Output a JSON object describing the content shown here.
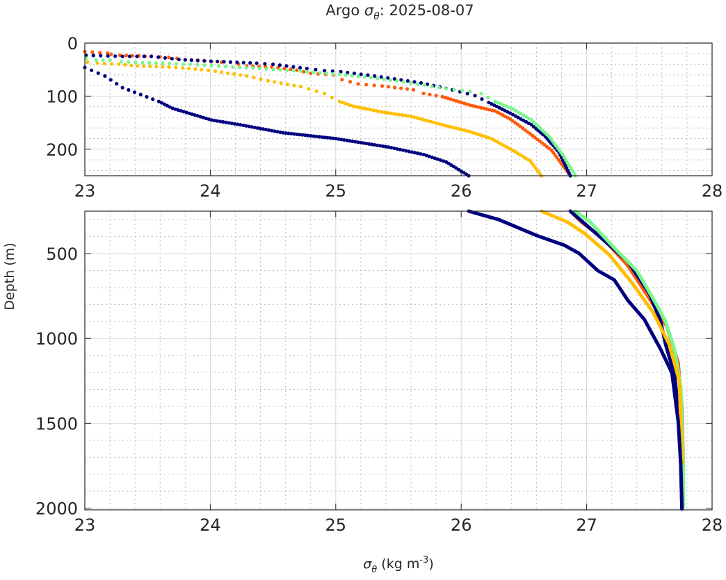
{
  "chart_data": {
    "type": "scatter",
    "title_prefix": "Argo ",
    "title_symbol": "σ",
    "title_sub": "θ",
    "title_suffix": ": 2025-08-07",
    "xlabel_symbol": "σ",
    "xlabel_sub": "θ",
    "xlabel_units": " (kg m",
    "xlabel_sup": "-3",
    "xlabel_close": ")",
    "ylabel": "Depth (m)",
    "xlim": [
      23,
      28
    ],
    "grid": true,
    "panels": [
      {
        "name": "upper",
        "ylim": [
          0,
          250
        ],
        "yticks": [
          "0",
          "100",
          "200"
        ],
        "ytick_values": [
          0,
          100,
          200
        ],
        "minor_y_step": 20,
        "style": "dots"
      },
      {
        "name": "lower",
        "ylim": [
          250,
          2010
        ],
        "yticks": [
          "500",
          "1000",
          "1500",
          "2000"
        ],
        "ytick_values": [
          500,
          1000,
          1500,
          2000
        ],
        "minor_y_step": 100,
        "style": "line"
      }
    ],
    "xticks": [
      "23",
      "24",
      "25",
      "26",
      "27",
      "28"
    ],
    "xtick_values": [
      23,
      24,
      25,
      26,
      27,
      28
    ],
    "minor_x_step": 0.2,
    "series": [
      {
        "name": "profile-orange",
        "color": "#ff5a0a",
        "points": [
          [
            23.0,
            16
          ],
          [
            23.18,
            19
          ],
          [
            23.21,
            21
          ],
          [
            23.28,
            23
          ],
          [
            23.53,
            25
          ],
          [
            23.67,
            27
          ],
          [
            23.8,
            31
          ],
          [
            23.9,
            32
          ],
          [
            24.01,
            35
          ],
          [
            24.09,
            36
          ],
          [
            24.16,
            36
          ],
          [
            24.29,
            43
          ],
          [
            24.49,
            45
          ],
          [
            24.69,
            51
          ],
          [
            24.8,
            57
          ],
          [
            24.98,
            60
          ],
          [
            25.05,
            69
          ],
          [
            25.18,
            77
          ],
          [
            25.37,
            81
          ],
          [
            25.62,
            88
          ],
          [
            25.7,
            95
          ],
          [
            25.85,
            101
          ],
          [
            26.07,
            117
          ],
          [
            26.27,
            128
          ],
          [
            26.39,
            143
          ],
          [
            26.55,
            171
          ],
          [
            26.72,
            202
          ],
          [
            26.87,
            250
          ],
          [
            26.96,
            315
          ],
          [
            27.13,
            410
          ],
          [
            27.33,
            572
          ],
          [
            27.5,
            765
          ],
          [
            27.64,
            929
          ],
          [
            27.73,
            1146
          ],
          [
            27.76,
            1417
          ],
          [
            27.77,
            1740
          ]
        ]
      },
      {
        "name": "profile-navy-2",
        "color": "#00007f",
        "points": [
          [
            23.01,
            23
          ],
          [
            23.3,
            25
          ],
          [
            23.53,
            25
          ],
          [
            23.64,
            28
          ],
          [
            23.75,
            31
          ],
          [
            23.9,
            33
          ],
          [
            24.37,
            38
          ],
          [
            24.5,
            40
          ],
          [
            24.77,
            48
          ],
          [
            24.91,
            52
          ],
          [
            25.04,
            54
          ],
          [
            25.31,
            62
          ],
          [
            25.68,
            75
          ],
          [
            25.93,
            88
          ],
          [
            26.11,
            99
          ],
          [
            26.22,
            112
          ],
          [
            26.39,
            132
          ],
          [
            26.56,
            154
          ],
          [
            26.67,
            176
          ],
          [
            26.78,
            206
          ],
          [
            26.87,
            250
          ],
          [
            27.12,
            410
          ],
          [
            27.33,
            548
          ],
          [
            27.5,
            735
          ],
          [
            27.59,
            900
          ],
          [
            27.63,
            1037
          ],
          [
            27.7,
            1213
          ],
          [
            27.73,
            1417
          ],
          [
            27.75,
            1735
          ],
          [
            27.76,
            2005
          ]
        ]
      },
      {
        "name": "profile-green",
        "color": "#78f78c",
        "points": [
          [
            23.01,
            29
          ],
          [
            23.09,
            32
          ],
          [
            23.2,
            32
          ],
          [
            23.29,
            35
          ],
          [
            23.46,
            37
          ],
          [
            23.62,
            38
          ],
          [
            23.84,
            40
          ],
          [
            24.18,
            45
          ],
          [
            24.34,
            47
          ],
          [
            24.72,
            53
          ],
          [
            25.03,
            59
          ],
          [
            25.28,
            65
          ],
          [
            25.54,
            73
          ],
          [
            25.88,
            86
          ],
          [
            26.07,
            91
          ],
          [
            26.16,
            95
          ],
          [
            26.27,
            110
          ],
          [
            26.41,
            124
          ],
          [
            26.56,
            145
          ],
          [
            26.7,
            176
          ],
          [
            26.81,
            211
          ],
          [
            26.91,
            250
          ],
          [
            27.03,
            315
          ],
          [
            27.22,
            466
          ],
          [
            27.4,
            601
          ],
          [
            27.53,
            765
          ],
          [
            27.63,
            900
          ],
          [
            27.7,
            1064
          ],
          [
            27.75,
            1284
          ],
          [
            27.77,
            1758
          ],
          [
            27.77,
            1990
          ]
        ]
      },
      {
        "name": "profile-yellow",
        "color": "#ffbf00",
        "points": [
          [
            23.02,
            36
          ],
          [
            23.1,
            38
          ],
          [
            23.27,
            40
          ],
          [
            23.42,
            43
          ],
          [
            23.67,
            45
          ],
          [
            23.78,
            47
          ],
          [
            23.93,
            50
          ],
          [
            24.04,
            53
          ],
          [
            24.29,
            62
          ],
          [
            24.46,
            71
          ],
          [
            24.72,
            82
          ],
          [
            24.91,
            95
          ],
          [
            25.03,
            110
          ],
          [
            25.14,
            119
          ],
          [
            25.37,
            130
          ],
          [
            25.6,
            138
          ],
          [
            25.85,
            154
          ],
          [
            26.07,
            167
          ],
          [
            26.24,
            180
          ],
          [
            26.41,
            202
          ],
          [
            26.55,
            222
          ],
          [
            26.64,
            250
          ],
          [
            26.85,
            315
          ],
          [
            26.99,
            385
          ],
          [
            27.18,
            507
          ],
          [
            27.36,
            671
          ],
          [
            27.53,
            847
          ],
          [
            27.66,
            1037
          ],
          [
            27.74,
            1254
          ],
          [
            27.76,
            1735
          ]
        ]
      },
      {
        "name": "profile-navy-1",
        "color": "#00007f",
        "points": [
          [
            23.0,
            46
          ],
          [
            23.16,
            62
          ],
          [
            23.3,
            84
          ],
          [
            23.59,
            110
          ],
          [
            23.7,
            123
          ],
          [
            24.01,
            145
          ],
          [
            24.24,
            154
          ],
          [
            24.58,
            169
          ],
          [
            25.0,
            180
          ],
          [
            25.42,
            196
          ],
          [
            25.7,
            210
          ],
          [
            25.88,
            224
          ],
          [
            26.06,
            250
          ],
          [
            26.3,
            300
          ],
          [
            26.61,
            396
          ],
          [
            26.82,
            450
          ],
          [
            26.94,
            499
          ],
          [
            27.09,
            601
          ],
          [
            27.22,
            655
          ],
          [
            27.33,
            777
          ],
          [
            27.46,
            888
          ],
          [
            27.59,
            1064
          ],
          [
            27.68,
            1203
          ],
          [
            27.73,
            1489
          ],
          [
            27.75,
            1735
          ],
          [
            27.76,
            2005
          ]
        ]
      }
    ]
  }
}
